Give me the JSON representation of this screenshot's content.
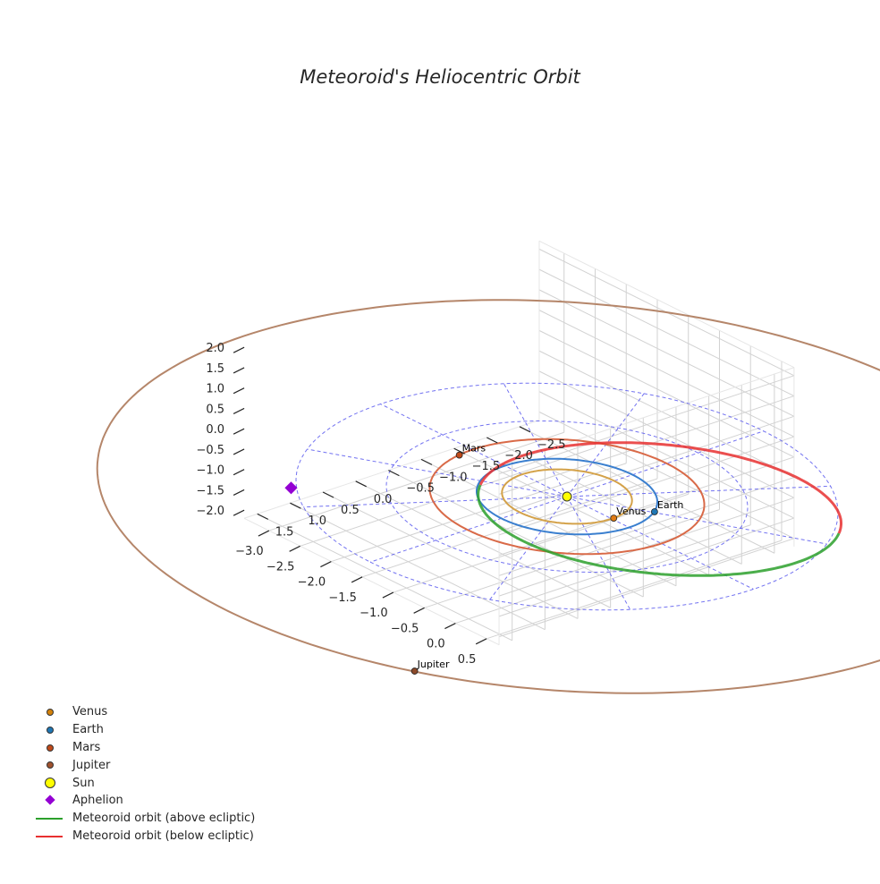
{
  "chart_data": {
    "type": "3d-line",
    "title": "Meteoroid's Heliocentric Orbit",
    "xlabel": "",
    "ylabel": "",
    "zlabel": "",
    "x_ticks": [
      -2.5,
      -2.0,
      -1.5,
      -1.0,
      -0.5,
      0.0,
      0.5,
      1.0,
      1.5
    ],
    "y_ticks": [
      -3.0,
      -2.5,
      -2.0,
      -1.5,
      -1.0,
      -0.5,
      0.0,
      0.5
    ],
    "z_ticks": [
      -2.0,
      -1.5,
      -1.0,
      -0.5,
      0.0,
      0.5,
      1.0,
      1.5,
      2.0
    ],
    "xlim": [
      -2.8,
      1.7
    ],
    "ylim": [
      -3.4,
      0.7
    ],
    "zlim": [
      -2.2,
      2.2
    ],
    "grid": true,
    "legend_position": "lower-left",
    "planet_orbits": [
      {
        "name": "Venus",
        "a": 0.72,
        "color": "#d4a24a"
      },
      {
        "name": "Earth",
        "a": 1.0,
        "color": "#3a7fcf"
      },
      {
        "name": "Mars",
        "a": 1.52,
        "color": "#d96a48"
      },
      {
        "name": "Jupiter",
        "a": 5.2,
        "color": "#b5866a"
      }
    ],
    "planets": [
      {
        "name": "Venus",
        "x": -0.03,
        "y": 0.72,
        "z": 0.0,
        "color": "#e07a12",
        "label": "Venus"
      },
      {
        "name": "Earth",
        "x": -0.52,
        "y": 0.86,
        "z": 0.0,
        "color": "#1f77b4",
        "label": "Earth"
      },
      {
        "name": "Mars",
        "x": 0.22,
        "y": -1.5,
        "z": 0.0,
        "color": "#c04a1a",
        "label": "Mars"
      },
      {
        "name": "Jupiter",
        "x": 4.6,
        "y": 2.4,
        "z": 0.0,
        "color": "#8c4a2a",
        "label": "Jupiter"
      }
    ],
    "sun": {
      "name": "Sun",
      "x": 0.0,
      "y": 0.0,
      "z": 0.0,
      "color": "#ffff00"
    },
    "aphelion": {
      "name": "Aphelion",
      "x": 2.36,
      "y": -1.95,
      "z": 0.0,
      "color": "#9400d3"
    },
    "meteoroid_orbit": {
      "perihelion_q": 0.975,
      "aphelion_Q": 3.06,
      "perihelion_longitude_deg": -53.8,
      "above_color": "#2ca02c",
      "below_color": "#e83030",
      "above_label": "Meteoroid orbit (above ecliptic)",
      "below_label": "Meteoroid orbit (below ecliptic)"
    },
    "ecliptic_grid": {
      "circles_au": [
        1.0,
        2.0,
        3.0
      ],
      "radial_spokes_deg": [
        0,
        30,
        60,
        90,
        120,
        150,
        180,
        210,
        240,
        270,
        300,
        330
      ],
      "color": "#5a5aef"
    }
  },
  "legend": {
    "items": [
      {
        "label": "Venus",
        "marker": "dot",
        "color": "#d4820a"
      },
      {
        "label": "Earth",
        "marker": "dot",
        "color": "#1f77b4"
      },
      {
        "label": "Mars",
        "marker": "dot",
        "color": "#c04a1a"
      },
      {
        "label": "Jupiter",
        "marker": "dot",
        "color": "#a0522d"
      },
      {
        "label": "Sun",
        "marker": "sun",
        "color": "#ffff00"
      },
      {
        "label": "Aphelion",
        "marker": "diamond",
        "color": "#9400d3"
      },
      {
        "label": "Meteoroid orbit (above ecliptic)",
        "marker": "line",
        "color": "#2ca02c"
      },
      {
        "label": "Meteoroid orbit (below ecliptic)",
        "marker": "line",
        "color": "#e83030"
      }
    ]
  }
}
